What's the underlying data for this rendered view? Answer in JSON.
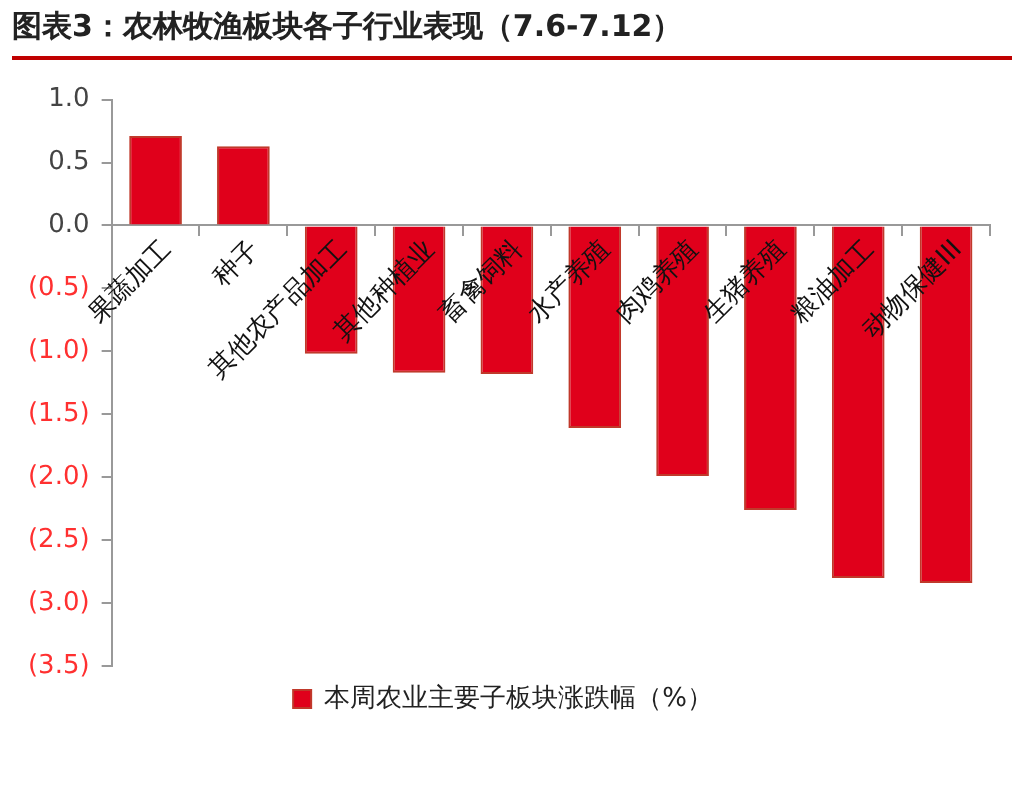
{
  "chart_data": {
    "type": "bar",
    "title": "图表3：农林牧渔板块各子行业表现（7.6-7.12）",
    "categories": [
      "果蔬加工",
      "种子",
      "其他农产品加工",
      "其他种植业",
      "畜禽饲料",
      "水产养殖",
      "肉鸡养殖",
      "生猪养殖",
      "粮油加工",
      "动物保健III"
    ],
    "series": [
      {
        "name": "本周农业主要子板块涨跌幅（%）",
        "color": "#e0001b",
        "values": [
          0.71,
          0.63,
          -1.02,
          -1.17,
          -1.18,
          -1.61,
          -1.99,
          -2.26,
          -2.8,
          -2.84
        ]
      }
    ],
    "ylim": [
      -3.5,
      1.0
    ],
    "yticks": [
      {
        "value": 1.0,
        "label": "1.0"
      },
      {
        "value": 0.5,
        "label": "0.5"
      },
      {
        "value": 0,
        "label": "0.0"
      },
      {
        "value": -0.5,
        "label": "(0.5)"
      },
      {
        "value": -1.0,
        "label": "(1.0)"
      },
      {
        "value": -1.5,
        "label": "(1.5)"
      },
      {
        "value": -2.0,
        "label": "(2.0)"
      },
      {
        "value": -2.5,
        "label": "(2.5)"
      },
      {
        "value": -3.0,
        "label": "(3.0)"
      },
      {
        "value": -3.5,
        "label": "(3.5)"
      }
    ],
    "grid": false,
    "legend": "bottom"
  }
}
